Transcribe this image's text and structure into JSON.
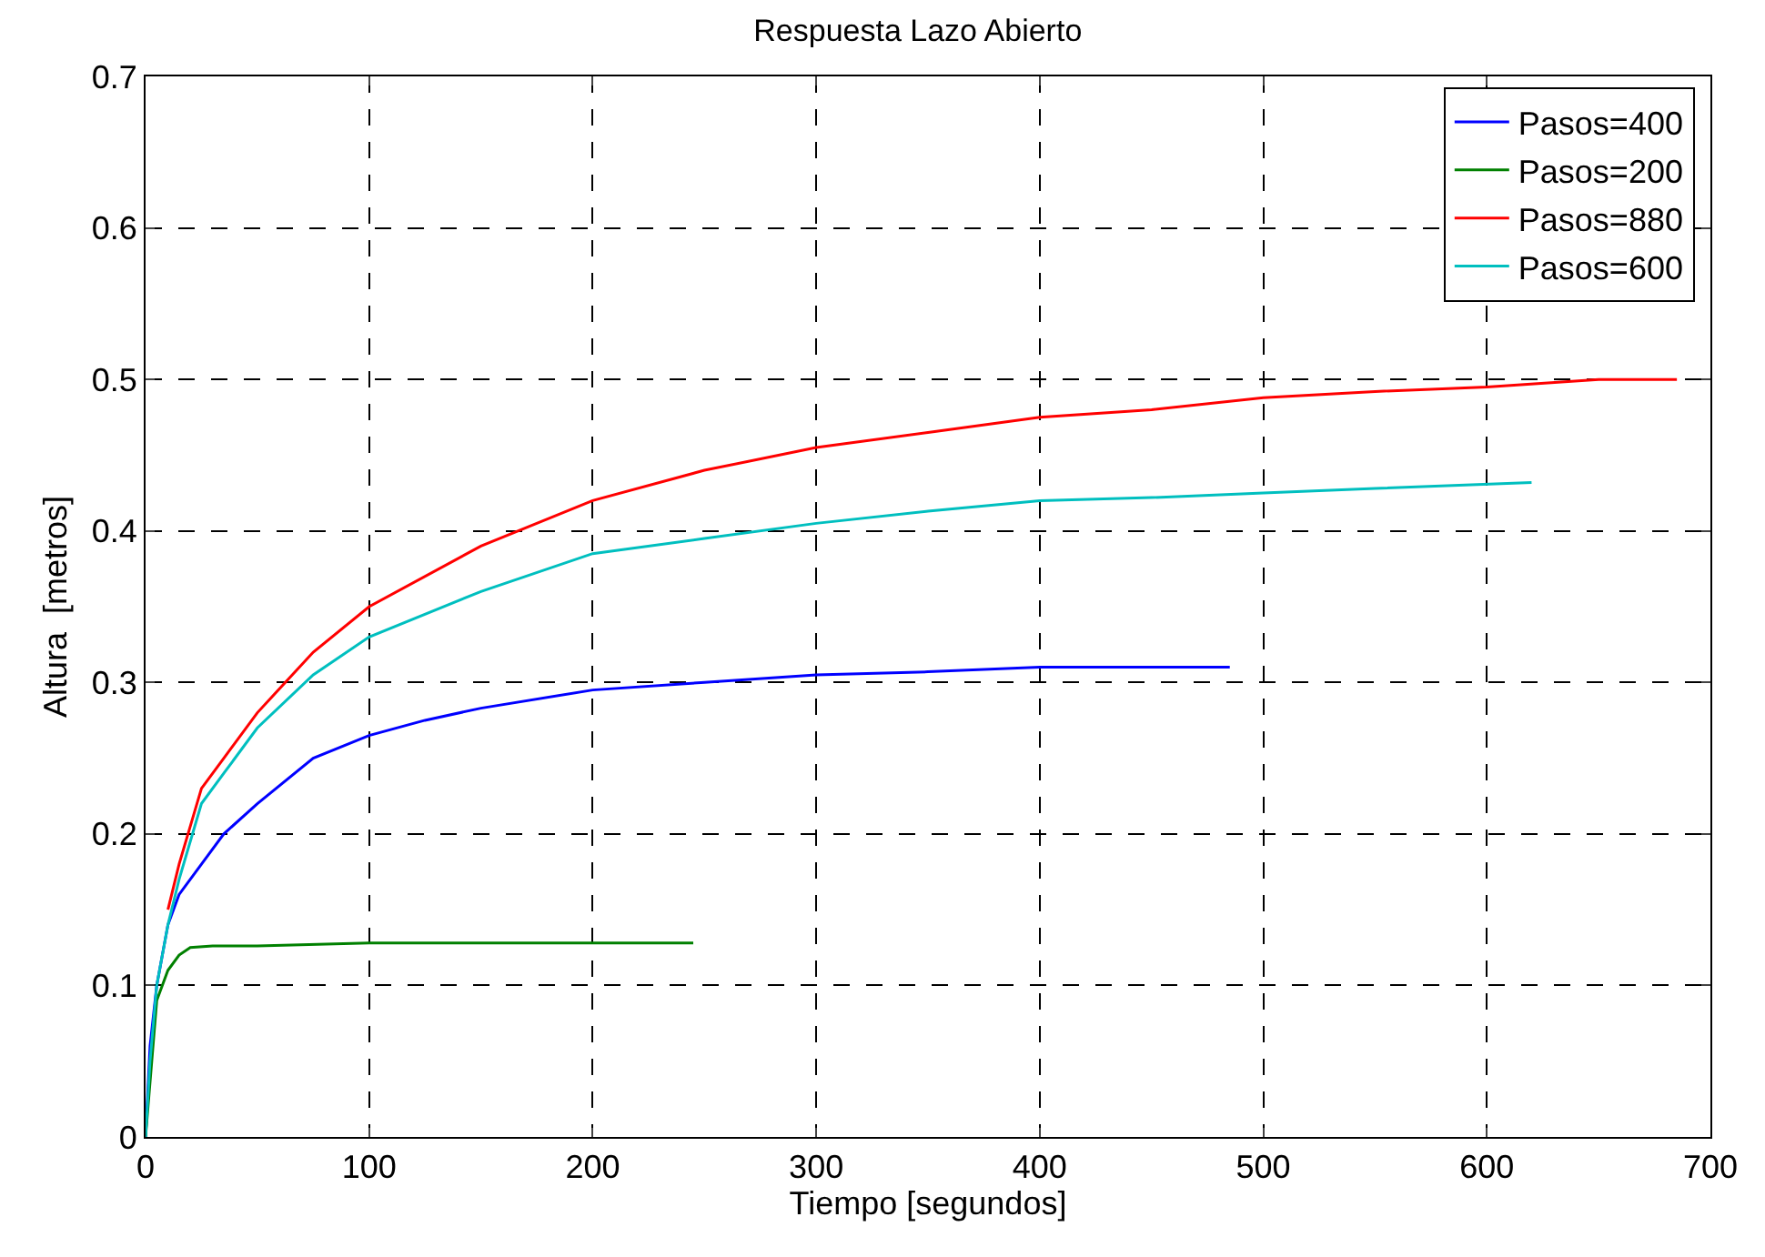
{
  "chart_data": {
    "type": "line",
    "title": "Respuesta Lazo Abierto",
    "xlabel": "Tiempo [segundos]",
    "ylabel": "Altura  [metros]",
    "xlim": [
      0,
      700
    ],
    "xticks": [
      0,
      100,
      200,
      300,
      400,
      500,
      600,
      700
    ],
    "ylim": [
      0,
      0.7
    ],
    "yticks": [
      0,
      0.1,
      0.2,
      0.3,
      0.4,
      0.5,
      0.6,
      0.7
    ],
    "grid": true,
    "legend": "top right",
    "line_style": "solid",
    "series": [
      {
        "name": "Pasos=400",
        "color": "#0000ff",
        "x": [
          0,
          2,
          5,
          10,
          15,
          25,
          35,
          50,
          75,
          100,
          125,
          150,
          200,
          250,
          300,
          350,
          400,
          450,
          485
        ],
        "values": [
          0,
          0.06,
          0.1,
          0.14,
          0.16,
          0.18,
          0.2,
          0.22,
          0.25,
          0.265,
          0.275,
          0.283,
          0.295,
          0.3,
          0.305,
          0.307,
          0.31,
          0.31,
          0.31
        ]
      },
      {
        "name": "Pasos=200",
        "color": "#008000",
        "x": [
          0,
          5,
          10,
          15,
          20,
          30,
          50,
          100,
          150,
          200,
          245
        ],
        "values": [
          0,
          0.09,
          0.11,
          0.12,
          0.125,
          0.126,
          0.126,
          0.128,
          0.128,
          0.128,
          0.128
        ]
      },
      {
        "name": "Pasos=880",
        "color": "#ff0000",
        "x": [
          10,
          15,
          25,
          35,
          50,
          75,
          100,
          150,
          200,
          250,
          300,
          350,
          400,
          450,
          500,
          550,
          600,
          650,
          685
        ],
        "values": [
          0.15,
          0.18,
          0.23,
          0.25,
          0.28,
          0.32,
          0.35,
          0.39,
          0.42,
          0.44,
          0.455,
          0.465,
          0.475,
          0.48,
          0.488,
          0.492,
          0.495,
          0.5,
          0.5
        ]
      },
      {
        "name": "Pasos=600",
        "color": "#00bfbf",
        "x": [
          0,
          2,
          5,
          10,
          15,
          25,
          35,
          50,
          75,
          100,
          150,
          200,
          250,
          300,
          350,
          400,
          450,
          500,
          550,
          620
        ],
        "values": [
          0,
          0.05,
          0.1,
          0.14,
          0.17,
          0.22,
          0.24,
          0.27,
          0.305,
          0.33,
          0.36,
          0.385,
          0.395,
          0.405,
          0.413,
          0.42,
          0.422,
          0.425,
          0.428,
          0.432
        ]
      }
    ]
  }
}
